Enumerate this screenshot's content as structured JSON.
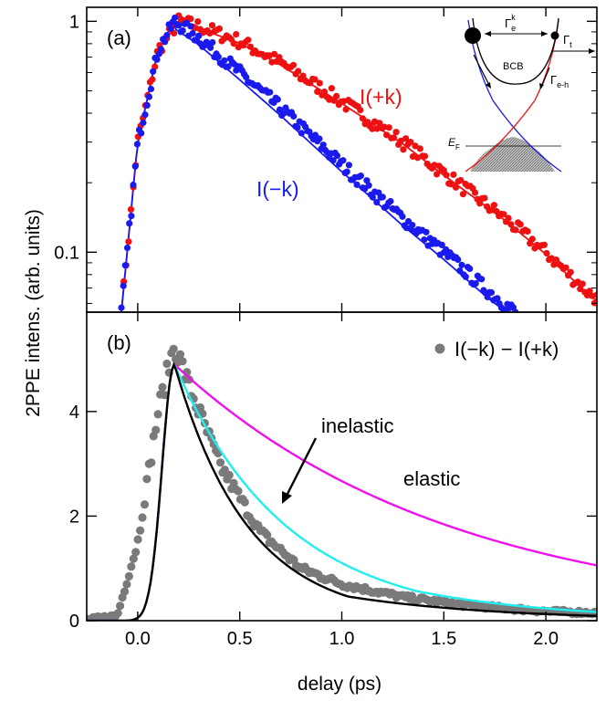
{
  "figure": {
    "ylabel": "2PPE intens. (arb. units)",
    "xlabel": "delay (ps)",
    "colors": {
      "red": "#ee1111",
      "blue": "#1a1aee",
      "gray": "#7a7a7a",
      "black": "#000000",
      "magenta": "#ee11ee",
      "cyan": "#22eeee"
    }
  },
  "chart_data": [
    {
      "type": "scatter",
      "panel_label": "(a)",
      "yscale": "log",
      "xlim": [
        -0.25,
        2.25
      ],
      "ylim": [
        0.055,
        1.15
      ],
      "yticks": [
        0.1,
        1
      ],
      "ytick_labels": [
        "0.1",
        "1"
      ],
      "series": [
        {
          "name": "I(+k)",
          "color": "#ee1111",
          "x": [
            -0.08,
            0.0,
            0.1,
            0.2,
            0.3,
            0.5,
            0.7,
            1.0,
            1.3,
            1.5,
            1.8,
            2.0,
            2.2,
            2.25
          ],
          "y": [
            0.055,
            0.3,
            0.75,
            1.0,
            0.95,
            0.82,
            0.66,
            0.45,
            0.3,
            0.22,
            0.14,
            0.1,
            0.068,
            0.063
          ]
        },
        {
          "name": "I(−k)",
          "color": "#1a1aee",
          "x": [
            -0.08,
            0.0,
            0.1,
            0.18,
            0.3,
            0.5,
            0.7,
            1.0,
            1.3,
            1.5,
            1.7,
            1.85
          ],
          "y": [
            0.055,
            0.3,
            0.75,
            1.0,
            0.85,
            0.6,
            0.42,
            0.24,
            0.14,
            0.1,
            0.07,
            0.055
          ]
        }
      ],
      "annotations": [
        "I(+k)",
        "I(−k)"
      ],
      "inset": {
        "labels": {
          "gamma_ek": "Γ",
          "gamma_ek_sub": "e",
          "gamma_ek_sup": "k",
          "gamma_t": "Γ",
          "gamma_t_sub": "t",
          "bcb": "BCB",
          "gamma_eh": "Γ",
          "gamma_eh_sub": "e-h",
          "ef": "E",
          "ef_sub": "F"
        }
      }
    },
    {
      "type": "line",
      "panel_label": "(b)",
      "xlim": [
        -0.25,
        2.25
      ],
      "ylim": [
        0,
        5.9
      ],
      "xticks": [
        0.0,
        0.5,
        1.0,
        1.5,
        2.0
      ],
      "xtick_labels": [
        "0.0",
        "0.5",
        "1.0",
        "1.5",
        "2.0"
      ],
      "yticks": [
        0,
        2,
        4
      ],
      "ytick_labels": [
        "0",
        "2",
        "4"
      ],
      "series": [
        {
          "name": "I(−k) − I(+k)",
          "color": "#7a7a7a",
          "x": [
            -0.25,
            -0.1,
            0.0,
            0.1,
            0.18,
            0.25,
            0.4,
            0.6,
            0.8,
            1.0,
            1.3,
            1.6,
            2.0,
            2.25
          ],
          "y": [
            0.02,
            0.1,
            1.5,
            4.0,
            5.3,
            4.5,
            3.0,
            1.7,
            1.0,
            0.7,
            0.45,
            0.3,
            0.18,
            0.15
          ]
        }
      ],
      "annotations": [
        "inelastic",
        "elastic"
      ]
    }
  ]
}
